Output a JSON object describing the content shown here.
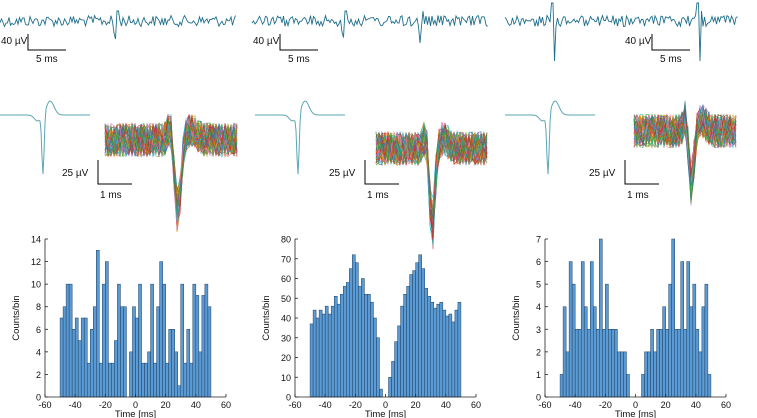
{
  "colors": {
    "trace": "#1f6f8b",
    "avg_waveform": "#5aa6b3",
    "bar_fill": "#5b9bd5",
    "bar_edge": "#1f3f5f",
    "axis": "#222222",
    "scale": "#000000"
  },
  "scale_labels": {
    "trace_voltage": "40 µV",
    "trace_time": "5 ms",
    "wave_voltage": "25 µV",
    "wave_time": "1 ms"
  },
  "chart_data": [
    {
      "type": "bar",
      "title": "",
      "xlabel": "Time [ms]",
      "ylabel": "Counts/bin",
      "xlim": [
        -60,
        60
      ],
      "ylim": [
        0,
        14
      ],
      "xticks": [
        -60,
        -40,
        -20,
        0,
        20,
        40,
        60
      ],
      "yticks": [
        0,
        2,
        4,
        6,
        8,
        10,
        12,
        14
      ],
      "bin_width": 2,
      "bin_start": -50,
      "values": [
        7,
        8,
        10,
        10,
        6,
        7,
        5,
        7,
        7,
        3,
        6,
        8,
        13,
        3,
        10,
        12,
        3,
        3,
        5,
        10,
        8,
        8,
        0,
        4,
        8,
        7,
        10,
        3,
        3,
        4,
        10,
        3,
        8,
        12,
        10,
        3,
        6,
        6,
        4,
        1,
        10,
        3,
        6,
        3,
        10,
        9,
        4,
        9,
        10,
        8
      ]
    },
    {
      "type": "bar",
      "title": "",
      "xlabel": "Time [ms]",
      "ylabel": "Counts/bin",
      "xlim": [
        -60,
        60
      ],
      "ylim": [
        0,
        80
      ],
      "xticks": [
        -60,
        -40,
        -20,
        0,
        20,
        40,
        60
      ],
      "yticks": [
        0,
        10,
        20,
        30,
        40,
        50,
        60,
        70,
        80
      ],
      "bin_width": 2,
      "bin_start": -50,
      "values": [
        37,
        44,
        40,
        44,
        42,
        46,
        42,
        46,
        51,
        47,
        52,
        56,
        58,
        65,
        72,
        68,
        56,
        60,
        52,
        52,
        48,
        40,
        30,
        4,
        0,
        0,
        10,
        18,
        28,
        36,
        46,
        52,
        56,
        62,
        64,
        68,
        72,
        65,
        55,
        51,
        48,
        45,
        47,
        48,
        44,
        41,
        42,
        38,
        44,
        48
      ]
    },
    {
      "type": "bar",
      "title": "",
      "xlabel": "Time [ms]",
      "ylabel": "Counts/bin",
      "xlim": [
        -60,
        60
      ],
      "ylim": [
        0,
        7
      ],
      "xticks": [
        -60,
        -40,
        -20,
        0,
        20,
        40,
        60
      ],
      "yticks": [
        0,
        1,
        2,
        3,
        4,
        5,
        6,
        7
      ],
      "bin_width": 2,
      "bin_start": -50,
      "values": [
        1,
        4,
        2,
        6,
        5,
        3,
        3,
        6,
        4,
        3,
        6,
        4,
        3,
        7,
        3,
        5,
        3,
        3,
        3,
        2,
        2,
        2,
        1,
        0,
        0,
        0,
        0,
        1,
        2,
        2,
        3,
        2,
        3,
        3,
        4,
        3,
        5,
        7,
        3,
        3,
        6,
        3,
        6,
        4,
        5,
        3,
        2,
        4,
        5,
        1
      ]
    }
  ]
}
